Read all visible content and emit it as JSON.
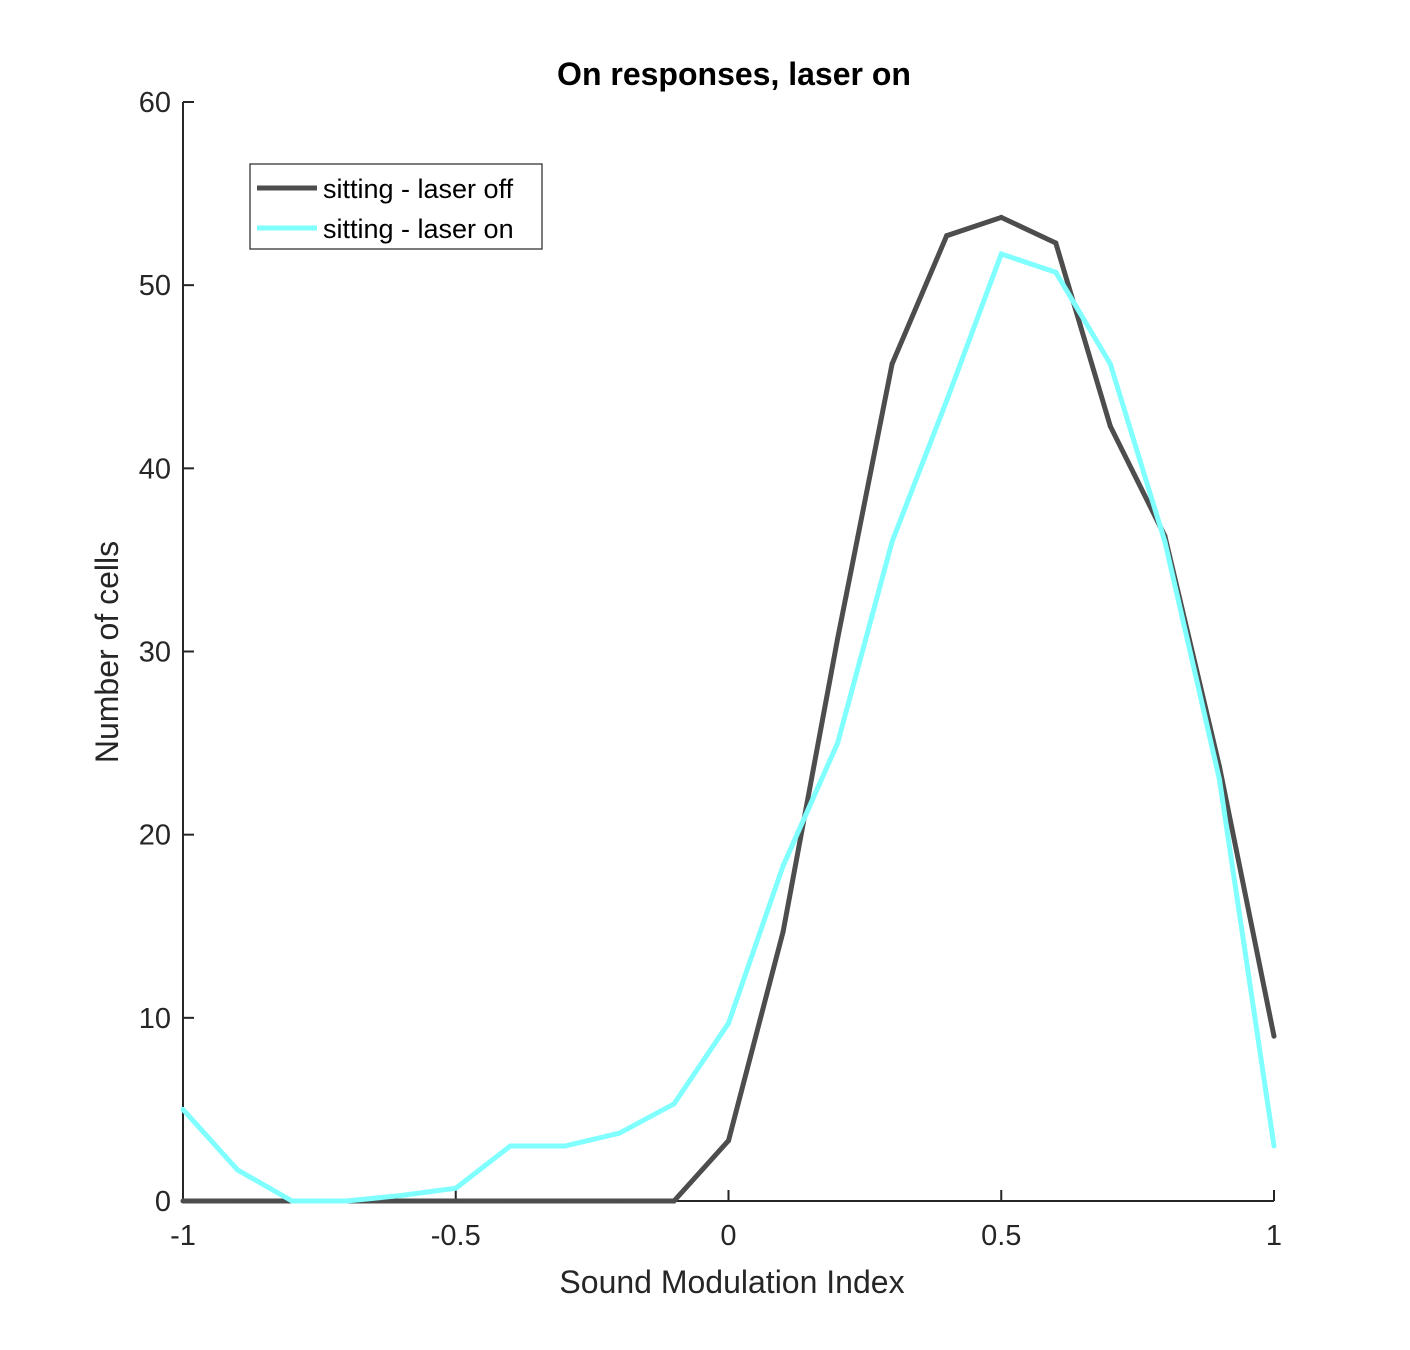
{
  "chart_data": {
    "type": "line",
    "title": "On responses, laser on",
    "xlabel": "Sound Modulation Index",
    "ylabel": "Number of cells",
    "xlim": [
      -1,
      1
    ],
    "ylim": [
      0,
      60
    ],
    "xticks": [
      "-1",
      "-0.5",
      "0",
      "0.5",
      "1"
    ],
    "yticks": [
      "0",
      "10",
      "20",
      "30",
      "40",
      "50",
      "60"
    ],
    "grid": false,
    "legend_position": "top-left",
    "x": [
      -1,
      -0.9,
      -0.8,
      -0.7,
      -0.6,
      -0.5,
      -0.4,
      -0.3,
      -0.2,
      -0.1,
      0,
      0.1,
      0.2,
      0.3,
      0.4,
      0.5,
      0.6,
      0.7,
      0.8,
      0.9,
      1
    ],
    "series": [
      {
        "name": "sitting - laser off",
        "color": "#4d4d4d",
        "values": [
          0,
          0,
          0,
          0,
          0,
          0,
          0,
          0,
          0,
          0,
          3.3,
          14.7,
          30.7,
          45.7,
          52.7,
          53.7,
          52.3,
          42.3,
          36.3,
          23.7,
          9
        ]
      },
      {
        "name": "sitting - laser on",
        "color": "#80ffff",
        "values": [
          5,
          1.7,
          0,
          0,
          0.3,
          0.7,
          3,
          3,
          3.7,
          5.3,
          9.7,
          18.3,
          25,
          36,
          43.7,
          51.7,
          50.7,
          45.7,
          36,
          23,
          3
        ]
      }
    ]
  }
}
